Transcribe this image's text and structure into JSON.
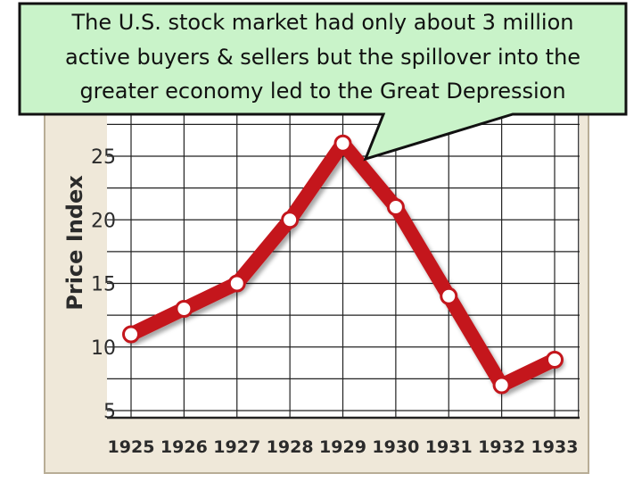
{
  "chart_data": {
    "type": "line",
    "title": "",
    "xlabel": "",
    "ylabel": "Price Index",
    "x": [
      "1925",
      "1926",
      "1927",
      "1928",
      "1929",
      "1930",
      "1931",
      "1932",
      "1933"
    ],
    "series": [
      {
        "values": [
          11,
          13,
          15,
          20,
          26,
          21,
          14,
          7,
          9
        ]
      }
    ],
    "yticks": [
      "5",
      "10",
      "15",
      "20",
      "25"
    ],
    "ylim": [
      4,
      30
    ],
    "grid": true,
    "line_color": "#c4161c",
    "panel_color": "#efe8d9",
    "plot_color": "#ffffff"
  },
  "callout": {
    "lines": [
      "The U.S. stock market had only about 3 million",
      "active buyers & sellers but the spillover into the",
      "greater economy led to the Great Depression"
    ],
    "fill": "#c9f3c9"
  }
}
